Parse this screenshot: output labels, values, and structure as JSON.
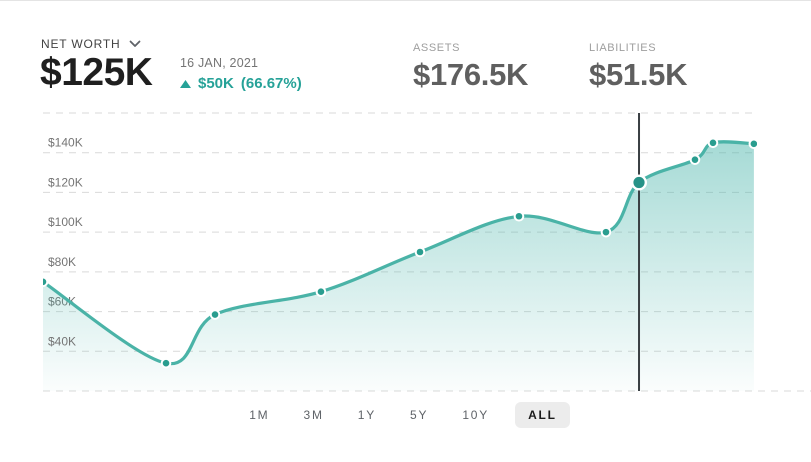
{
  "header": {
    "net_worth_label": "NET WORTH",
    "net_worth_value": "$125K",
    "date": "16 JAN, 2021",
    "change_amount": "$50K",
    "change_percent": "(66.67%)",
    "change_direction": "up",
    "assets_label": "ASSETS",
    "assets_value": "$176.5K",
    "liabilities_label": "LIABILITIES",
    "liabilities_value": "$51.5K"
  },
  "timeframe": {
    "options": [
      "1M",
      "3M",
      "1Y",
      "5Y",
      "10Y",
      "ALL"
    ],
    "selected": "ALL"
  },
  "colors": {
    "accent_text": "#26a298",
    "line": "#4ab3a7",
    "dot": "#2a9d8f",
    "selected_dot": "#279287",
    "area_top": "rgba(77,182,172,0.5)",
    "area_bottom": "rgba(77,182,172,0.02)",
    "grid": "#d9d9d9",
    "crosshair": "#3a3f43",
    "tick_text": "#757575"
  },
  "chart_data": {
    "type": "area",
    "title": "Net worth over time",
    "unit": "USD (thousands)",
    "legend": "none",
    "grid": "dashed horizontal",
    "x_axis": {
      "labels_visible": false,
      "selected_point_date": "16 JAN, 2021"
    },
    "y_axis": {
      "range_k": [
        20,
        160
      ],
      "gridline_values_k": [
        160,
        140,
        120,
        100,
        80,
        60,
        40,
        20
      ],
      "labeled_ticks": [
        {
          "value_k": 140,
          "label": "$140K"
        },
        {
          "value_k": 120,
          "label": "$120K"
        },
        {
          "value_k": 100,
          "label": "$100K"
        },
        {
          "value_k": 80,
          "label": "$80K"
        },
        {
          "value_k": 60,
          "label": "$60K"
        },
        {
          "value_k": 40,
          "label": "$40K"
        }
      ]
    },
    "series": [
      {
        "name": "Net worth",
        "points": [
          {
            "x": 0.0,
            "y_k": 75
          },
          {
            "x": 0.1728,
            "y_k": 34
          },
          {
            "x": 0.2416,
            "y_k": 58.5
          },
          {
            "x": 0.3904,
            "y_k": 70
          },
          {
            "x": 0.5295,
            "y_k": 90
          },
          {
            "x": 0.6685,
            "y_k": 108
          },
          {
            "x": 0.7907,
            "y_k": 100
          },
          {
            "x": 0.8371,
            "y_k": 125
          },
          {
            "x": 0.9157,
            "y_k": 136.5
          },
          {
            "x": 0.941,
            "y_k": 145
          },
          {
            "x": 0.9984,
            "y_k": 144.5
          }
        ]
      }
    ],
    "selected_index": 7,
    "selected_value_k": 125
  }
}
